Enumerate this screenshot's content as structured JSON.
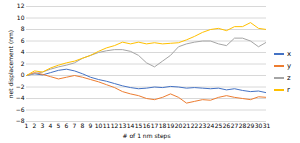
{
  "chart_data": {
    "type": "line",
    "xlabel": "# of 1 nm steps",
    "ylabel": "net displacement (nm)",
    "x": [
      1,
      2,
      3,
      4,
      5,
      6,
      7,
      8,
      9,
      10,
      11,
      12,
      13,
      14,
      15,
      16,
      17,
      18,
      19,
      20,
      21,
      22,
      23,
      24,
      25,
      26,
      27,
      28,
      29,
      30,
      31
    ],
    "series": [
      {
        "name": "x",
        "color": "#4472C4",
        "values": [
          0,
          0.3,
          0.1,
          0.5,
          0.9,
          1.1,
          0.8,
          0.3,
          -0.3,
          -0.7,
          -1.0,
          -1.4,
          -1.8,
          -2.1,
          -2.3,
          -2.2,
          -2.0,
          -2.1,
          -1.9,
          -2.0,
          -2.2,
          -2.1,
          -2.2,
          -2.3,
          -2.2,
          -2.5,
          -2.3,
          -2.6,
          -2.8,
          -2.7,
          -3.0
        ]
      },
      {
        "name": "y",
        "color": "#ED7D31",
        "values": [
          0,
          0.5,
          0.2,
          -0.2,
          -0.6,
          -0.3,
          0.0,
          -0.3,
          -0.7,
          -1.1,
          -1.6,
          -2.1,
          -2.8,
          -3.2,
          -3.5,
          -4.0,
          -4.2,
          -3.8,
          -3.2,
          -3.8,
          -4.8,
          -4.5,
          -4.2,
          -4.3,
          -3.8,
          -3.5,
          -3.8,
          -4.0,
          -4.2,
          -3.7,
          -3.8
        ]
      },
      {
        "name": "z",
        "color": "#A5A5A5",
        "values": [
          0,
          0.3,
          0.6,
          1.1,
          1.5,
          1.8,
          2.2,
          3.0,
          3.5,
          4.0,
          4.3,
          4.5,
          4.5,
          4.2,
          3.5,
          2.2,
          1.5,
          2.5,
          3.5,
          5.0,
          5.5,
          5.8,
          6.0,
          6.0,
          5.5,
          5.2,
          6.5,
          6.5,
          6.0,
          5.0,
          5.8
        ]
      },
      {
        "name": "r",
        "color": "#FFC000",
        "values": [
          0,
          0.8,
          0.6,
          1.3,
          1.8,
          2.2,
          2.5,
          3.0,
          3.5,
          4.2,
          4.8,
          5.2,
          5.8,
          5.5,
          5.8,
          5.5,
          5.7,
          5.5,
          5.6,
          5.7,
          6.2,
          6.8,
          7.5,
          8.0,
          8.2,
          7.8,
          8.5,
          8.5,
          9.2,
          8.2,
          8.0
        ]
      }
    ],
    "xlim": [
      1,
      31
    ],
    "xticks": [
      1,
      2,
      3,
      4,
      5,
      6,
      7,
      8,
      9,
      10,
      11,
      12,
      13,
      14,
      15,
      16,
      17,
      18,
      19,
      20,
      21,
      22,
      23,
      24,
      25,
      26,
      27,
      28,
      29,
      30,
      31
    ],
    "ylim": [
      -8,
      12
    ],
    "yticks": [
      -8,
      -6,
      -4,
      -2,
      0,
      2,
      4,
      6,
      8,
      10,
      12
    ],
    "grid": true,
    "legend": "right"
  }
}
